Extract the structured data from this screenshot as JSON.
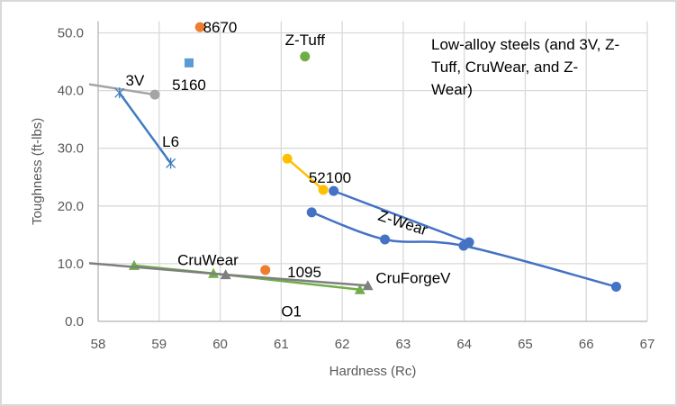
{
  "chart_data": {
    "type": "scatter",
    "title": "",
    "xlabel": "Hardness (Rc)",
    "ylabel": "Toughness (ft-lbs)",
    "xlim": [
      58,
      67
    ],
    "ylim": [
      0,
      52
    ],
    "x_ticks": [
      58,
      59,
      60,
      61,
      62,
      63,
      64,
      65,
      66,
      67
    ],
    "y_ticks": [
      "0.0",
      "10.0",
      "20.0",
      "30.0",
      "40.0",
      "50.0"
    ],
    "y_tick_values": [
      0,
      10,
      20,
      30,
      40,
      50
    ],
    "grid": true,
    "legend": "none",
    "annotation": [
      "Low-alloy steels (and 3V, Z-",
      "Tuff, CruWear, and Z-",
      "Wear)"
    ],
    "series": [
      {
        "name": "8670",
        "color": "#ED7D31",
        "marker": "circle",
        "line": false,
        "points": [
          [
            59.67,
            51.0
          ]
        ]
      },
      {
        "name": "5160",
        "color": "#5B9BD5",
        "marker": "square",
        "line": false,
        "points": [
          [
            59.49,
            44.8
          ]
        ]
      },
      {
        "name": "Z-Tuff",
        "color": "#70AD47",
        "marker": "circle",
        "line": false,
        "points": [
          [
            61.39,
            45.9
          ]
        ]
      },
      {
        "name": "3V",
        "color": "#A5A5A5",
        "marker": "circle",
        "line": true,
        "points": [
          [
            57.6,
            41.5
          ],
          [
            58.93,
            39.3
          ]
        ],
        "marker_indices": [
          1
        ]
      },
      {
        "name": "L6",
        "color": "#3F7DC0",
        "marker": "star",
        "line": true,
        "points": [
          [
            58.35,
            39.6
          ],
          [
            59.19,
            27.4
          ]
        ]
      },
      {
        "name": "52100",
        "color": "#FFC000",
        "marker": "circle",
        "line": true,
        "points": [
          [
            61.1,
            28.2
          ],
          [
            61.69,
            22.8
          ]
        ]
      },
      {
        "name": "Z-Wear",
        "color": "#4472C4",
        "marker": "circle",
        "line": true,
        "points": [
          [
            61.86,
            22.6
          ],
          [
            64.08,
            13.7
          ]
        ]
      },
      {
        "name": "CruForgeV",
        "color": "#4472C4",
        "marker": "circle",
        "line": true,
        "smooth": true,
        "points": [
          [
            61.5,
            18.9
          ],
          [
            62.7,
            14.2
          ],
          [
            63.99,
            13.1
          ],
          [
            66.49,
            6.0
          ]
        ]
      },
      {
        "name": "CruWear",
        "color": "#ED7D31",
        "marker": "circle",
        "line": false,
        "points": [
          [
            60.74,
            8.9
          ]
        ]
      },
      {
        "name": "O1",
        "color": "#70AD47",
        "marker": "triangle",
        "line": true,
        "points": [
          [
            58.59,
            9.7
          ],
          [
            59.89,
            8.3
          ],
          [
            62.29,
            5.5
          ]
        ]
      },
      {
        "name": "1095",
        "color": "#7F7F7F",
        "marker": "triangle",
        "line": true,
        "points": [
          [
            57.5,
            10.4
          ],
          [
            60.09,
            8.1
          ],
          [
            62.42,
            6.2
          ]
        ],
        "marker_indices": [
          1,
          2
        ]
      }
    ],
    "labels": [
      {
        "text": "8670",
        "x": 59.72,
        "y": 51.0,
        "anchor": "start"
      },
      {
        "text": "5160",
        "x": 59.49,
        "y": 41.0,
        "anchor": "middle"
      },
      {
        "text": "Z-Tuff",
        "x": 61.39,
        "y": 48.8,
        "anchor": "middle"
      },
      {
        "text": "3V",
        "x": 58.45,
        "y": 41.8,
        "anchor": "start"
      },
      {
        "text": "L6",
        "x": 59.05,
        "y": 31.2,
        "anchor": "start"
      },
      {
        "text": "52100",
        "x": 61.45,
        "y": 25.0,
        "anchor": "start"
      },
      {
        "text": "Z-Wear",
        "x": 62.6,
        "y": 18.5,
        "anchor": "start",
        "rotate": 18
      },
      {
        "text": "CruForgeV",
        "x": 62.55,
        "y": 7.6,
        "anchor": "start"
      },
      {
        "text": "CruWear",
        "x": 59.3,
        "y": 10.7,
        "anchor": "start"
      },
      {
        "text": "1095",
        "x": 61.1,
        "y": 8.6,
        "anchor": "start"
      },
      {
        "text": "O1",
        "x": 61.0,
        "y": 1.8,
        "anchor": "start"
      }
    ]
  }
}
